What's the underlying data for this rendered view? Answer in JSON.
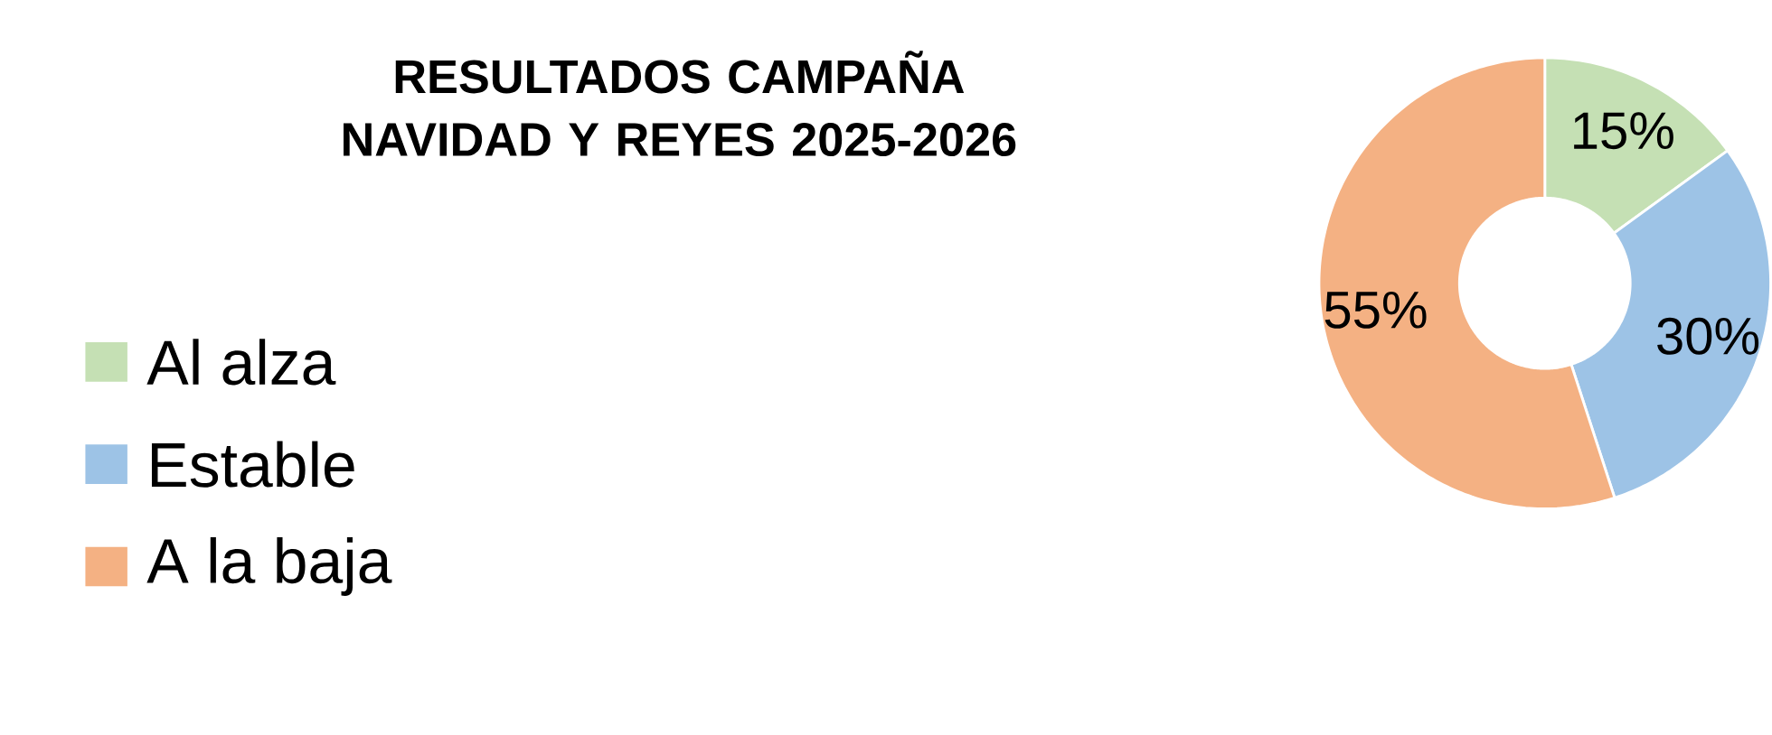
{
  "chart_data": {
    "type": "donut",
    "title": "RESULTADOS CAMPAÑA\nNAVIDAD Y REYES 2025-2026",
    "categories": [
      "Al alza",
      "Estable",
      "A la baja"
    ],
    "values": [
      15,
      30,
      55
    ],
    "value_labels": [
      "15%",
      "30%",
      "55%"
    ],
    "colors": [
      "#c5e0b4",
      "#9dc3e6",
      "#f4b183"
    ],
    "legend": "left"
  }
}
